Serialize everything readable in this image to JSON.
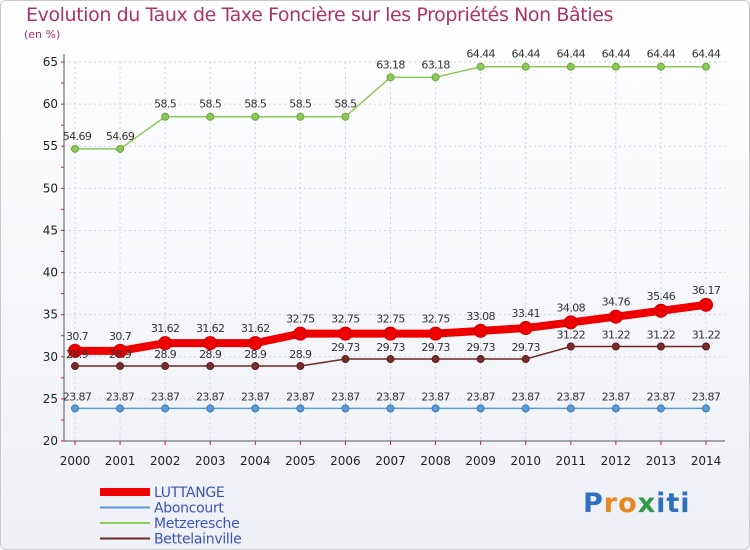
{
  "title": "Evolution du Taux de Taxe Foncière sur les Propriétés Non Bâties",
  "unit": "(en %)",
  "brand": "Proxiti",
  "chart_data": {
    "type": "line",
    "title": "Evolution du Taux de Taxe Foncière sur les Propriétés Non Bâties",
    "ylabel": "(en %)",
    "xlabel": "",
    "x": [
      "2000",
      "2001",
      "2002",
      "2003",
      "2004",
      "2005",
      "2006",
      "2007",
      "2008",
      "2009",
      "2010",
      "2011",
      "2012",
      "2013",
      "2014"
    ],
    "ylim": [
      20,
      65
    ],
    "yticks": [
      20,
      25,
      30,
      35,
      40,
      45,
      50,
      55,
      60,
      65
    ],
    "grid": true,
    "legend_position": "bottom-left",
    "series": [
      {
        "name": "Metzeresche",
        "color": "#8ec85a",
        "values": [
          54.69,
          54.69,
          58.5,
          58.5,
          58.5,
          58.5,
          58.5,
          63.18,
          63.18,
          64.44,
          64.44,
          64.44,
          64.44,
          64.44,
          64.44
        ]
      },
      {
        "name": "Bettelainville",
        "color": "#6a2a2a",
        "values": [
          28.9,
          28.9,
          28.9,
          28.9,
          28.9,
          28.9,
          29.73,
          29.73,
          29.73,
          29.73,
          29.73,
          31.22,
          31.22,
          31.22,
          31.22
        ]
      },
      {
        "name": "Aboncourt",
        "color": "#5b9bd5",
        "values": [
          23.87,
          23.87,
          23.87,
          23.87,
          23.87,
          23.87,
          23.87,
          23.87,
          23.87,
          23.87,
          23.87,
          23.87,
          23.87,
          23.87,
          23.87
        ]
      },
      {
        "name": "LUTTANGE",
        "color": "#ee0000",
        "values": [
          30.7,
          30.7,
          31.62,
          31.62,
          31.62,
          32.75,
          32.75,
          32.75,
          32.75,
          33.08,
          33.41,
          34.08,
          34.76,
          35.46,
          36.17
        ]
      }
    ],
    "point_labels": {
      "Metzeresche": [
        "54.69",
        "54.69",
        "58.5",
        "58.5",
        "58.5",
        "58.5",
        "58.5",
        "63.18",
        "63.18",
        "64.44",
        "64.44",
        "64.44",
        "64.44",
        "64.44",
        "64.44"
      ],
      "Bettelainville": [
        "28.9",
        "28.9",
        "28.9",
        "28.9",
        "28.9",
        "28.9",
        "29.73",
        "29.73",
        "29.73",
        "29.73",
        "29.73",
        "31.22",
        "31.22",
        "31.22",
        "31.22"
      ],
      "Aboncourt": [
        "23.87",
        "23.87",
        "23.87",
        "23.87",
        "23.87",
        "23.87",
        "23.87",
        "23.87",
        "23.87",
        "23.87",
        "23.87",
        "23.87",
        "23.87",
        "23.87",
        "23.87"
      ],
      "LUTTANGE": [
        "30.7",
        "30.7",
        "31.62",
        "31.62",
        "31.62",
        "32.75",
        "32.75",
        "32.75",
        "32.75",
        "33.08",
        "33.41",
        "34.08",
        "34.76",
        "35.46",
        "36.17"
      ]
    },
    "legend": [
      "LUTTANGE",
      "Aboncourt",
      "Metzeresche",
      "Bettelainville"
    ]
  }
}
